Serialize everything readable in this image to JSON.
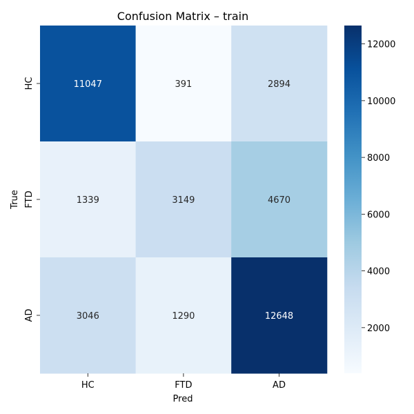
{
  "chart_data": {
    "type": "heatmap",
    "title": "Confusion Matrix – train",
    "xlabel": "Pred",
    "ylabel": "True",
    "x_categories": [
      "HC",
      "FTD",
      "AD"
    ],
    "y_categories": [
      "HC",
      "FTD",
      "AD"
    ],
    "values": [
      [
        11047,
        391,
        2894
      ],
      [
        1339,
        3149,
        4670
      ],
      [
        3046,
        1290,
        12648
      ]
    ],
    "colorbar": {
      "min": 391,
      "max": 12648,
      "ticks": [
        2000,
        4000,
        6000,
        8000,
        10000,
        12000
      ],
      "colormap": "Blues"
    },
    "colors": {
      "low": "#f7fbff",
      "high": "#08306b"
    }
  }
}
